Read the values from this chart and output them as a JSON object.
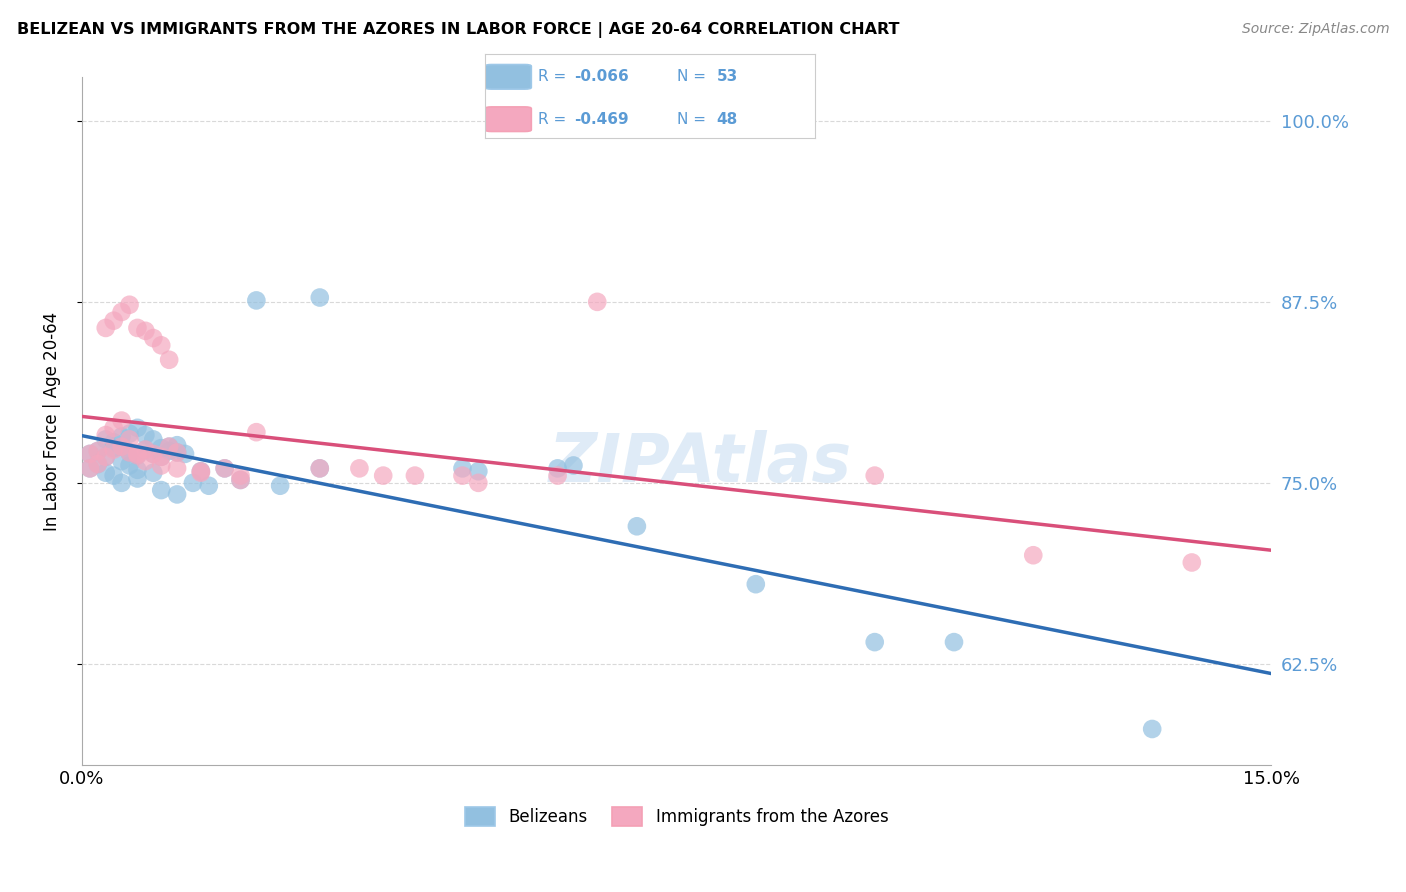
{
  "title": "BELIZEAN VS IMMIGRANTS FROM THE AZORES IN LABOR FORCE | AGE 20-64 CORRELATION CHART",
  "source": "Source: ZipAtlas.com",
  "xmin": 0.0,
  "xmax": 0.15,
  "ymin": 0.555,
  "ymax": 1.03,
  "ylabel": "In Labor Force | Age 20-64",
  "blue_R": "-0.066",
  "blue_N": "53",
  "pink_R": "-0.469",
  "pink_N": "48",
  "blue_color": "#92c0e0",
  "pink_color": "#f4a8bf",
  "blue_line_color": "#2e6db4",
  "pink_line_color": "#d94f7a",
  "label_color": "#5b9bd5",
  "background_color": "#ffffff",
  "grid_color": "#d0d0d0",
  "watermark": "ZIPAtlas",
  "blue_scatter_x": [
    0.001,
    0.002,
    0.003,
    0.004,
    0.005,
    0.006,
    0.007,
    0.008,
    0.009,
    0.01,
    0.011,
    0.012,
    0.013,
    0.003,
    0.004,
    0.005,
    0.006,
    0.007,
    0.008,
    0.009,
    0.01,
    0.011,
    0.012,
    0.001,
    0.002,
    0.003,
    0.004,
    0.005,
    0.006,
    0.007,
    0.015,
    0.018,
    0.022,
    0.03,
    0.048,
    0.05,
    0.06,
    0.062,
    0.07,
    0.085,
    0.01,
    0.012,
    0.014,
    0.016,
    0.009,
    0.007,
    0.005,
    0.02,
    0.025,
    0.03,
    0.1,
    0.11,
    0.135
  ],
  "blue_scatter_y": [
    0.77,
    0.772,
    0.768,
    0.774,
    0.775,
    0.771,
    0.769,
    0.773,
    0.77,
    0.768,
    0.775,
    0.771,
    0.77,
    0.78,
    0.778,
    0.782,
    0.784,
    0.788,
    0.783,
    0.78,
    0.774,
    0.772,
    0.776,
    0.76,
    0.763,
    0.757,
    0.755,
    0.765,
    0.762,
    0.759,
    0.758,
    0.76,
    0.876,
    0.878,
    0.76,
    0.758,
    0.76,
    0.762,
    0.72,
    0.68,
    0.745,
    0.742,
    0.75,
    0.748,
    0.757,
    0.753,
    0.75,
    0.752,
    0.748,
    0.76,
    0.64,
    0.64,
    0.58
  ],
  "pink_scatter_x": [
    0.001,
    0.002,
    0.003,
    0.004,
    0.005,
    0.006,
    0.007,
    0.008,
    0.009,
    0.01,
    0.011,
    0.012,
    0.001,
    0.002,
    0.003,
    0.004,
    0.005,
    0.006,
    0.007,
    0.008,
    0.009,
    0.01,
    0.011,
    0.015,
    0.018,
    0.02,
    0.022,
    0.03,
    0.035,
    0.038,
    0.042,
    0.048,
    0.05,
    0.06,
    0.065,
    0.1,
    0.12,
    0.14,
    0.003,
    0.004,
    0.005,
    0.006,
    0.007,
    0.008,
    0.01,
    0.012,
    0.015,
    0.02
  ],
  "pink_scatter_y": [
    0.77,
    0.772,
    0.768,
    0.773,
    0.775,
    0.771,
    0.769,
    0.773,
    0.77,
    0.768,
    0.775,
    0.771,
    0.76,
    0.763,
    0.857,
    0.862,
    0.868,
    0.873,
    0.857,
    0.855,
    0.85,
    0.845,
    0.835,
    0.758,
    0.76,
    0.755,
    0.785,
    0.76,
    0.76,
    0.755,
    0.755,
    0.755,
    0.75,
    0.755,
    0.875,
    0.755,
    0.7,
    0.695,
    0.783,
    0.788,
    0.793,
    0.78,
    0.77,
    0.765,
    0.762,
    0.76,
    0.757,
    0.752
  ]
}
